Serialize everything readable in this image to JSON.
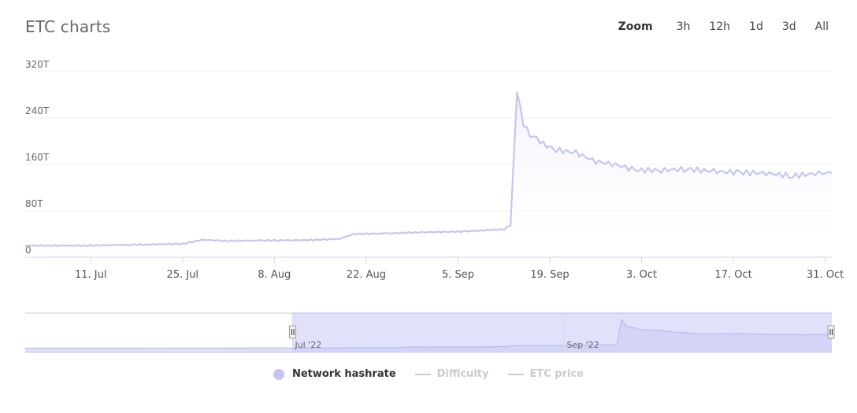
{
  "header": {
    "title": "ETC charts",
    "zoom_label": "Zoom",
    "zoom_options": [
      "3h",
      "12h",
      "1d",
      "3d",
      "All"
    ]
  },
  "colors": {
    "series_line": "#c4c6f2",
    "series_fill": "#eeeefc",
    "navigator_mask": "#dcdcfa",
    "grid": "#f2f2f2",
    "axis": "#ccd6eb",
    "inactive": "#cccccc"
  },
  "chart_data": {
    "type": "area",
    "title": "ETC charts",
    "xlabel": "",
    "ylabel": "",
    "x_ticks": [
      "11. Jul",
      "25. Jul",
      "8. Aug",
      "22. Aug",
      "5. Sep",
      "19. Sep",
      "3. Oct",
      "17. Oct",
      "31. Oct"
    ],
    "y_ticks": [
      "0",
      "80T",
      "160T",
      "240T",
      "320T"
    ],
    "ylim": [
      0,
      320
    ],
    "x_range": [
      "2022-07-01",
      "2022-11-01"
    ],
    "grid": true,
    "legend_position": "bottom-center",
    "navigator_labels": [
      "Jul '22",
      "Sep '22"
    ],
    "series": [
      {
        "name": "Network hashrate",
        "active": true,
        "x": [
          "2022-07-01",
          "2022-07-05",
          "2022-07-10",
          "2022-07-15",
          "2022-07-20",
          "2022-07-25",
          "2022-07-28",
          "2022-08-01",
          "2022-08-05",
          "2022-08-10",
          "2022-08-15",
          "2022-08-18",
          "2022-08-20",
          "2022-08-25",
          "2022-08-30",
          "2022-09-05",
          "2022-09-10",
          "2022-09-12",
          "2022-09-13",
          "2022-09-14",
          "2022-09-15",
          "2022-09-16",
          "2022-09-17",
          "2022-09-18",
          "2022-09-20",
          "2022-09-23",
          "2022-09-26",
          "2022-09-29",
          "2022-10-02",
          "2022-10-06",
          "2022-10-10",
          "2022-10-14",
          "2022-10-18",
          "2022-10-22",
          "2022-10-26",
          "2022-10-30",
          "2022-11-01"
        ],
        "y": [
          20,
          20,
          20,
          21,
          22,
          23,
          30,
          28,
          29,
          29,
          30,
          32,
          40,
          41,
          43,
          44,
          47,
          48,
          55,
          285,
          230,
          210,
          205,
          195,
          185,
          180,
          165,
          160,
          150,
          150,
          152,
          148,
          146,
          145,
          140,
          145,
          145
        ]
      },
      {
        "name": "Difficulty",
        "active": false
      },
      {
        "name": "ETC price",
        "active": false
      }
    ]
  }
}
